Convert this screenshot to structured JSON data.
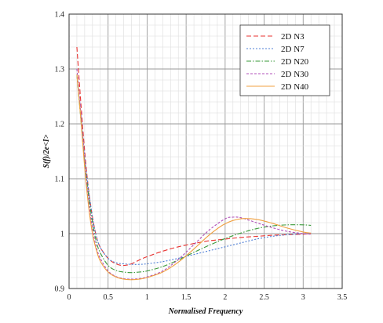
{
  "chart_data": {
    "type": "line",
    "title": "",
    "xlabel": "Normalised Frequency",
    "ylabel": "S(f)/2e<I>",
    "xlim": [
      0,
      3.5
    ],
    "ylim": [
      0.9,
      1.4
    ],
    "xticks": [
      "0",
      "0.5",
      "1",
      "1.5",
      "2",
      "2.5",
      "3",
      "3.5"
    ],
    "yticks": [
      "0.9",
      "1",
      "1.1",
      "1.2",
      "1.3",
      "1.4"
    ],
    "grid": true,
    "legend_position": "top-right",
    "series": [
      {
        "name": "2D N3",
        "color": "#e8312f",
        "dash": "dashed",
        "x": [
          0.1,
          0.15,
          0.2,
          0.25,
          0.3,
          0.35,
          0.4,
          0.5,
          0.6,
          0.7,
          0.8,
          0.9,
          1.0,
          1.2,
          1.4,
          1.6,
          1.8,
          2.0,
          2.2,
          2.4,
          2.6,
          2.8,
          3.0,
          3.1
        ],
        "y": [
          1.34,
          1.24,
          1.15,
          1.08,
          1.03,
          0.995,
          0.975,
          0.955,
          0.945,
          0.942,
          0.945,
          0.952,
          0.958,
          0.968,
          0.976,
          0.982,
          0.987,
          0.99,
          0.993,
          0.995,
          0.997,
          0.998,
          0.999,
          1.0
        ]
      },
      {
        "name": "2D N7",
        "color": "#4f7fd6",
        "dash": "dotted",
        "x": [
          0.1,
          0.15,
          0.2,
          0.25,
          0.3,
          0.35,
          0.4,
          0.5,
          0.6,
          0.7,
          0.8,
          0.9,
          1.0,
          1.2,
          1.4,
          1.6,
          1.8,
          2.0,
          2.2,
          2.4,
          2.6,
          2.8,
          3.0,
          3.1
        ],
        "y": [
          1.29,
          1.22,
          1.14,
          1.08,
          1.03,
          0.995,
          0.975,
          0.955,
          0.947,
          0.945,
          0.944,
          0.944,
          0.945,
          0.949,
          0.955,
          0.962,
          0.969,
          0.976,
          0.983,
          0.99,
          0.995,
          0.998,
          1.0,
          1.001
        ]
      },
      {
        "name": "2D N20",
        "color": "#3a9a3a",
        "dash": "dashdot",
        "x": [
          0.1,
          0.15,
          0.2,
          0.25,
          0.3,
          0.35,
          0.4,
          0.5,
          0.6,
          0.7,
          0.8,
          0.9,
          1.0,
          1.2,
          1.4,
          1.6,
          1.8,
          2.0,
          2.2,
          2.4,
          2.6,
          2.8,
          3.0,
          3.1
        ],
        "y": [
          1.29,
          1.21,
          1.13,
          1.07,
          1.02,
          0.985,
          0.965,
          0.942,
          0.933,
          0.93,
          0.929,
          0.93,
          0.932,
          0.94,
          0.952,
          0.966,
          0.979,
          0.991,
          1.001,
          1.009,
          1.014,
          1.016,
          1.016,
          1.015
        ]
      },
      {
        "name": "2D N30",
        "color": "#b04fb8",
        "dash": "dashed-fine",
        "x": [
          0.1,
          0.15,
          0.2,
          0.25,
          0.3,
          0.35,
          0.4,
          0.5,
          0.6,
          0.7,
          0.8,
          0.9,
          1.0,
          1.2,
          1.4,
          1.6,
          1.8,
          2.0,
          2.1,
          2.2,
          2.4,
          2.6,
          2.8,
          3.0,
          3.1
        ],
        "y": [
          1.3,
          1.22,
          1.13,
          1.06,
          1.01,
          0.975,
          0.955,
          0.932,
          0.922,
          0.918,
          0.917,
          0.918,
          0.921,
          0.932,
          0.953,
          0.98,
          1.007,
          1.027,
          1.03,
          1.029,
          1.02,
          1.011,
          1.004,
          1.0,
          0.999
        ]
      },
      {
        "name": "2D N40",
        "color": "#f0a040",
        "dash": "solid",
        "x": [
          0.1,
          0.15,
          0.2,
          0.25,
          0.3,
          0.35,
          0.4,
          0.5,
          0.6,
          0.7,
          0.8,
          0.9,
          1.0,
          1.2,
          1.4,
          1.6,
          1.8,
          2.0,
          2.2,
          2.4,
          2.6,
          2.8,
          3.0,
          3.1
        ],
        "y": [
          1.29,
          1.21,
          1.12,
          1.05,
          1.0,
          0.97,
          0.95,
          0.93,
          0.921,
          0.917,
          0.916,
          0.917,
          0.92,
          0.93,
          0.948,
          0.972,
          0.998,
          1.018,
          1.027,
          1.026,
          1.019,
          1.01,
          1.003,
          1.001
        ]
      }
    ]
  }
}
